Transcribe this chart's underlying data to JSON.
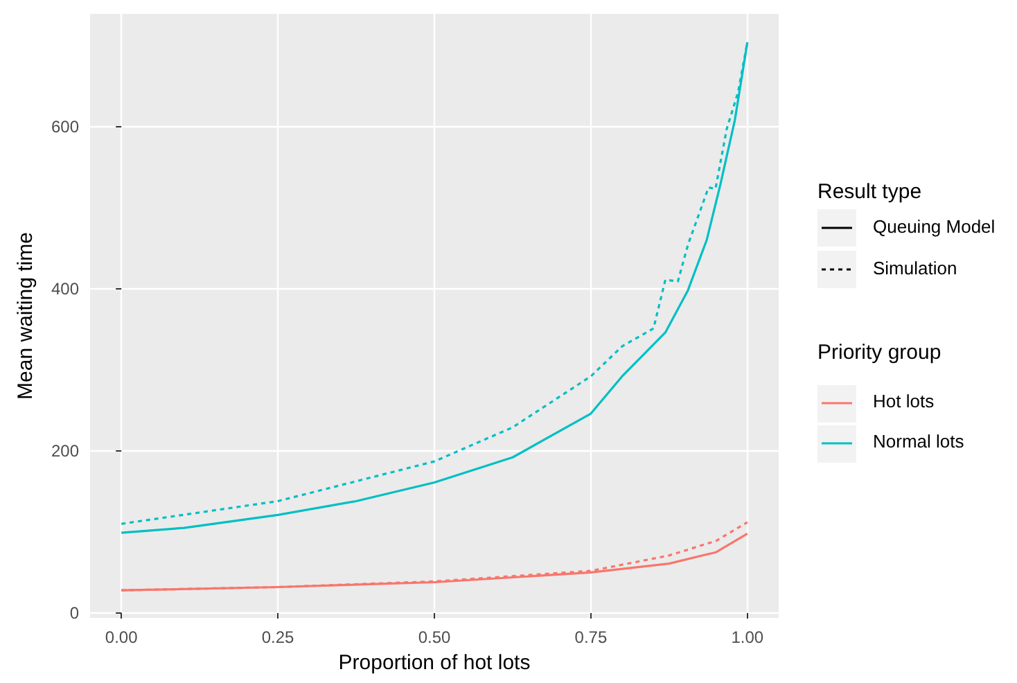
{
  "chart_data": {
    "type": "line",
    "xlabel": "Proportion of hot lots",
    "ylabel": "Mean waiting time",
    "xlim": [
      -0.05,
      1.05
    ],
    "xticks": [
      {
        "value": 0,
        "label": "0.00"
      },
      {
        "value": 0.25,
        "label": "0.25"
      },
      {
        "value": 0.5,
        "label": "0.50"
      },
      {
        "value": 0.75,
        "label": "0.75"
      },
      {
        "value": 1,
        "label": "1.00"
      }
    ],
    "ylim": [
      -6,
      739
    ],
    "yticks": [
      0,
      200,
      400,
      600
    ],
    "grid": true,
    "legend": "right",
    "legend_title": "Priority group",
    "annotations": [
      "Result type",
      "Queuing Model",
      "Simulation"
    ],
    "series": [
      {
        "name": "Hot lots",
        "color": "#f8766d",
        "line_style": "solid",
        "x": [
          0,
          0.25,
          0.5,
          0.75,
          0.875,
          0.95,
          1
        ],
        "values": [
          28,
          32,
          38,
          50,
          61,
          75,
          98
        ]
      },
      {
        "color": "#f8766d",
        "line_style": "dashed",
        "x": [
          0,
          0.25,
          0.5,
          0.75,
          0.875,
          0.95,
          1
        ],
        "values": [
          28,
          32,
          39,
          52,
          71,
          89,
          112
        ]
      },
      {
        "name": "Normal lots",
        "color": "#00bfc4",
        "line_style": "solid",
        "x": [
          0,
          0.1,
          0.25,
          0.375,
          0.5,
          0.625,
          0.75,
          0.8,
          0.869,
          0.905,
          0.935,
          0.957,
          0.98,
          1
        ],
        "values": [
          99,
          105,
          121,
          138,
          161,
          192,
          246,
          292,
          346,
          398,
          460,
          529,
          608,
          704
        ]
      },
      {
        "color": "#00bfc4",
        "line_style": "dashed",
        "x": [
          0,
          0.25,
          0.5,
          0.625,
          0.75,
          0.8,
          0.85,
          0.869,
          0.889,
          0.905,
          0.938,
          0.949,
          0.967,
          0.985,
          1
        ],
        "values": [
          110,
          138,
          187,
          229,
          292,
          329,
          351,
          411,
          409,
          454,
          525,
          523,
          597,
          642,
          704
        ]
      }
    ]
  }
}
